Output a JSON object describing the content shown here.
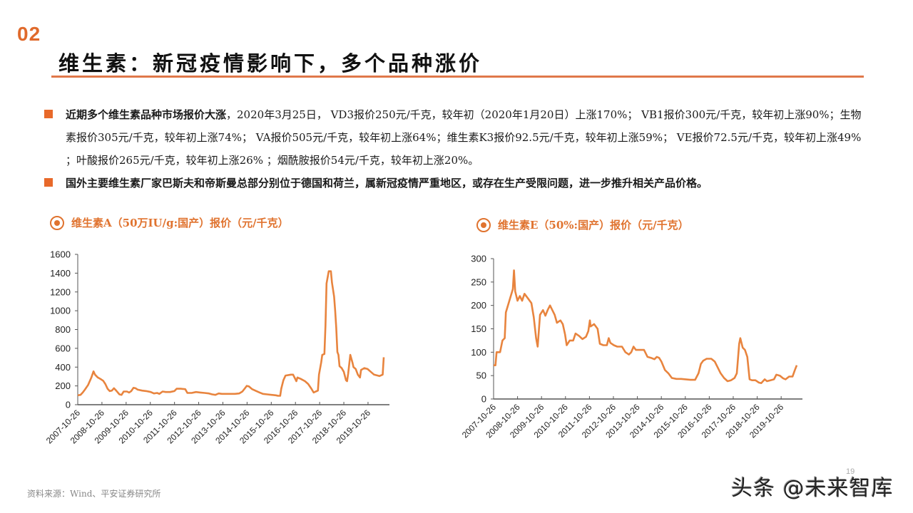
{
  "header": {
    "section_number": "02",
    "title": "维生素：新冠疫情影响下，多个品种涨价",
    "accent_color": "#e0732f"
  },
  "bullets": [
    {
      "bold": "近期多个维生素品种市场报价大涨",
      "text": "，2020年3月25日， VD3报价250元/千克，较年初（2020年1月20日）上涨170%； VB1报价300元/千克，较年初上涨90%；生物素报价305元/千克，较年初上涨74%； VA报价505元/千克，较年初上涨64%；维生素K3报价92.5元/千克，较年初上涨59%； VE报价72.5元/千克，较年初上涨49% ；叶酸报价265元/千克，较年初上涨26% ；烟酰胺报价54元/千克，较年初上涨20%。"
    },
    {
      "bold": "国外主要维生素厂家巴斯夫和帝斯曼总部分别位于德国和荷兰，属新冠疫情严重地区，或存在生产受限问题，进一步推升相关产品价格。",
      "text": ""
    }
  ],
  "chart_data": [
    {
      "type": "line",
      "title": "维生素A（50万IU/g:国产）报价（元/千克）",
      "xlabel": "",
      "ylabel": "",
      "ylim": [
        0,
        1600
      ],
      "yticks": [
        0,
        200,
        400,
        600,
        800,
        1000,
        1200,
        1400,
        1600
      ],
      "categories": [
        "2007-10-26",
        "2008-10-26",
        "2009-10-26",
        "2010-10-26",
        "2011-10-26",
        "2012-10-26",
        "2013-10-26",
        "2014-10-26",
        "2015-10-26",
        "2016-10-26",
        "2017-10-26",
        "2018-10-26",
        "2019-10-26"
      ],
      "x_range": [
        2007.82,
        2020.25
      ],
      "grid": false,
      "legend": "none",
      "line_color": "#e8843e",
      "series": [
        {
          "name": "维生素A",
          "points": [
            [
              2007.82,
              100
            ],
            [
              2007.95,
              105
            ],
            [
              2008.05,
              130
            ],
            [
              2008.15,
              160
            ],
            [
              2008.3,
              210
            ],
            [
              2008.45,
              290
            ],
            [
              2008.55,
              355
            ],
            [
              2008.62,
              320
            ],
            [
              2008.75,
              290
            ],
            [
              2008.9,
              270
            ],
            [
              2009.0,
              255
            ],
            [
              2009.1,
              220
            ],
            [
              2009.2,
              170
            ],
            [
              2009.3,
              145
            ],
            [
              2009.4,
              150
            ],
            [
              2009.5,
              175
            ],
            [
              2009.6,
              150
            ],
            [
              2009.75,
              110
            ],
            [
              2009.85,
              105
            ],
            [
              2009.95,
              140
            ],
            [
              2010.1,
              140
            ],
            [
              2010.2,
              130
            ],
            [
              2010.3,
              145
            ],
            [
              2010.4,
              180
            ],
            [
              2010.5,
              175
            ],
            [
              2010.6,
              160
            ],
            [
              2010.8,
              150
            ],
            [
              2011.0,
              145
            ],
            [
              2011.2,
              135
            ],
            [
              2011.35,
              120
            ],
            [
              2011.5,
              125
            ],
            [
              2011.6,
              115
            ],
            [
              2011.75,
              140
            ],
            [
              2011.9,
              135
            ],
            [
              2012.1,
              135
            ],
            [
              2012.3,
              145
            ],
            [
              2012.4,
              170
            ],
            [
              2012.6,
              170
            ],
            [
              2012.8,
              165
            ],
            [
              2012.9,
              125
            ],
            [
              2013.1,
              125
            ],
            [
              2013.3,
              135
            ],
            [
              2013.5,
              130
            ],
            [
              2013.7,
              125
            ],
            [
              2013.9,
              120
            ],
            [
              2014.05,
              110
            ],
            [
              2014.2,
              105
            ],
            [
              2014.35,
              120
            ],
            [
              2014.5,
              115
            ],
            [
              2014.8,
              115
            ],
            [
              2015.1,
              115
            ],
            [
              2015.3,
              120
            ],
            [
              2015.45,
              140
            ],
            [
              2015.55,
              170
            ],
            [
              2015.65,
              200
            ],
            [
              2015.75,
              195
            ],
            [
              2015.9,
              165
            ],
            [
              2016.1,
              145
            ],
            [
              2016.25,
              130
            ],
            [
              2016.4,
              115
            ],
            [
              2016.6,
              110
            ],
            [
              2016.8,
              105
            ],
            [
              2017.0,
              100
            ],
            [
              2017.1,
              95
            ],
            [
              2017.2,
              95
            ],
            [
              2017.25,
              170
            ],
            [
              2017.35,
              260
            ],
            [
              2017.45,
              310
            ],
            [
              2017.7,
              320
            ],
            [
              2017.8,
              320
            ],
            [
              2017.95,
              250
            ],
            [
              2018.0,
              290
            ],
            [
              2018.15,
              275
            ],
            [
              2018.35,
              250
            ],
            [
              2018.5,
              220
            ],
            [
              2018.65,
              170
            ],
            [
              2018.75,
              130
            ],
            [
              2018.85,
              140
            ],
            [
              2018.95,
              150
            ],
            [
              2019.0,
              320
            ],
            [
              2019.1,
              450
            ],
            [
              2019.15,
              530
            ],
            [
              2019.25,
              540
            ],
            [
              2019.3,
              840
            ],
            [
              2019.35,
              1290
            ],
            [
              2019.45,
              1420
            ],
            [
              2019.55,
              1420
            ],
            [
              2019.6,
              1300
            ],
            [
              2019.7,
              1150
            ],
            [
              2019.75,
              1000
            ],
            [
              2019.8,
              820
            ],
            [
              2019.85,
              560
            ],
            [
              2019.9,
              530
            ],
            [
              2019.95,
              410
            ],
            [
              2020.05,
              390
            ],
            [
              2020.15,
              350
            ],
            [
              2020.25,
              260
            ],
            [
              2020.3,
              250
            ],
            [
              2020.35,
              330
            ],
            [
              2020.45,
              530
            ],
            [
              2020.55,
              450
            ],
            [
              2020.6,
              400
            ],
            [
              2020.7,
              380
            ],
            [
              2020.8,
              320
            ],
            [
              2020.9,
              290
            ],
            [
              2020.95,
              370
            ],
            [
              2021.1,
              390
            ],
            [
              2021.25,
              380
            ],
            [
              2021.4,
              350
            ],
            [
              2021.55,
              320
            ],
            [
              2021.8,
              305
            ],
            [
              2021.95,
              320
            ],
            [
              2022.0,
              505
            ]
          ]
        }
      ]
    },
    {
      "type": "line",
      "title": "维生素E（50%:国产）报价（元/千克）",
      "xlabel": "",
      "ylabel": "",
      "ylim": [
        0,
        300
      ],
      "yticks": [
        0,
        50,
        100,
        150,
        200,
        250,
        300
      ],
      "categories": [
        "2007-10-26",
        "2008-10-26",
        "2009-10-26",
        "2010-10-26",
        "2011-10-26",
        "2012-10-26",
        "2013-10-26",
        "2014-10-26",
        "2015-10-26",
        "2016-10-26",
        "2017-10-26",
        "2018-10-26",
        "2019-10-26"
      ],
      "x_range": [
        2007.82,
        2020.25
      ],
      "grid": false,
      "legend": "none",
      "line_color": "#e8843e",
      "series": [
        {
          "name": "维生素E",
          "points": [
            [
              2007.82,
              72
            ],
            [
              2007.9,
              72
            ],
            [
              2007.95,
              100
            ],
            [
              2008.1,
              100
            ],
            [
              2008.2,
              125
            ],
            [
              2008.3,
              130
            ],
            [
              2008.35,
              185
            ],
            [
              2008.5,
              210
            ],
            [
              2008.65,
              235
            ],
            [
              2008.7,
              275
            ],
            [
              2008.75,
              230
            ],
            [
              2008.85,
              210
            ],
            [
              2008.95,
              220
            ],
            [
              2009.05,
              210
            ],
            [
              2009.15,
              225
            ],
            [
              2009.3,
              215
            ],
            [
              2009.45,
              205
            ],
            [
              2009.55,
              175
            ],
            [
              2009.65,
              130
            ],
            [
              2009.72,
              112
            ],
            [
              2009.82,
              180
            ],
            [
              2009.95,
              190
            ],
            [
              2010.05,
              178
            ],
            [
              2010.15,
              190
            ],
            [
              2010.25,
              200
            ],
            [
              2010.35,
              190
            ],
            [
              2010.45,
              180
            ],
            [
              2010.55,
              163
            ],
            [
              2010.7,
              168
            ],
            [
              2010.8,
              160
            ],
            [
              2010.9,
              138
            ],
            [
              2010.97,
              115
            ],
            [
              2011.1,
              125
            ],
            [
              2011.25,
              125
            ],
            [
              2011.35,
              140
            ],
            [
              2011.5,
              135
            ],
            [
              2011.65,
              128
            ],
            [
              2011.8,
              133
            ],
            [
              2011.9,
              145
            ],
            [
              2011.97,
              168
            ],
            [
              2012.0,
              155
            ],
            [
              2012.15,
              160
            ],
            [
              2012.3,
              150
            ],
            [
              2012.4,
              118
            ],
            [
              2012.55,
              115
            ],
            [
              2012.7,
              115
            ],
            [
              2012.78,
              130
            ],
            [
              2012.85,
              120
            ],
            [
              2013.0,
              115
            ],
            [
              2013.15,
              112
            ],
            [
              2013.35,
              112
            ],
            [
              2013.5,
              100
            ],
            [
              2013.65,
              95
            ],
            [
              2013.75,
              100
            ],
            [
              2013.85,
              112
            ],
            [
              2013.95,
              105
            ],
            [
              2014.1,
              105
            ],
            [
              2014.3,
              105
            ],
            [
              2014.45,
              90
            ],
            [
              2014.6,
              88
            ],
            [
              2014.75,
              85
            ],
            [
              2014.85,
              90
            ],
            [
              2014.95,
              88
            ],
            [
              2015.05,
              80
            ],
            [
              2015.2,
              62
            ],
            [
              2015.35,
              55
            ],
            [
              2015.5,
              45
            ],
            [
              2015.7,
              43
            ],
            [
              2015.9,
              43
            ],
            [
              2016.1,
              42
            ],
            [
              2016.3,
              41
            ],
            [
              2016.5,
              41
            ],
            [
              2016.65,
              55
            ],
            [
              2016.75,
              75
            ],
            [
              2016.85,
              82
            ],
            [
              2017.0,
              86
            ],
            [
              2017.2,
              86
            ],
            [
              2017.35,
              80
            ],
            [
              2017.5,
              65
            ],
            [
              2017.6,
              55
            ],
            [
              2017.75,
              45
            ],
            [
              2017.9,
              38
            ],
            [
              2018.05,
              40
            ],
            [
              2018.2,
              45
            ],
            [
              2018.3,
              55
            ],
            [
              2018.4,
              118
            ],
            [
              2018.45,
              130
            ],
            [
              2018.55,
              110
            ],
            [
              2018.65,
              105
            ],
            [
              2018.75,
              90
            ],
            [
              2018.85,
              42
            ],
            [
              2018.95,
              40
            ],
            [
              2019.1,
              40
            ],
            [
              2019.25,
              35
            ],
            [
              2019.35,
              34
            ],
            [
              2019.5,
              42
            ],
            [
              2019.6,
              38
            ],
            [
              2019.75,
              40
            ],
            [
              2019.9,
              42
            ],
            [
              2020.0,
              52
            ],
            [
              2020.15,
              50
            ],
            [
              2020.3,
              44
            ],
            [
              2020.4,
              42
            ],
            [
              2020.55,
              48
            ],
            [
              2020.7,
              48
            ],
            [
              2020.8,
              62
            ],
            [
              2020.88,
              72
            ]
          ]
        }
      ]
    }
  ],
  "footer": {
    "source": "资料来源：Wind、平安证券研究所",
    "page_number": "19",
    "watermark": "头条 @未来智库"
  }
}
